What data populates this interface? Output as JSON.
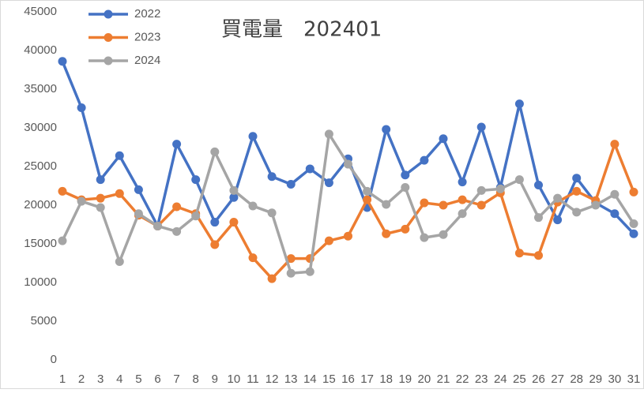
{
  "chart_data": {
    "type": "line",
    "title": "買電量　202401",
    "categories": [
      "1",
      "2",
      "3",
      "4",
      "5",
      "6",
      "7",
      "8",
      "9",
      "10",
      "11",
      "12",
      "13",
      "14",
      "15",
      "16",
      "17",
      "18",
      "19",
      "20",
      "21",
      "22",
      "23",
      "24",
      "25",
      "26",
      "27",
      "28",
      "29",
      "30",
      "31"
    ],
    "series": [
      {
        "name": "2022",
        "color": "#4472c4",
        "values": [
          38600,
          32600,
          23300,
          26400,
          22000,
          17300,
          27900,
          23300,
          17800,
          21000,
          28900,
          23700,
          22700,
          24700,
          22900,
          26000,
          19700,
          29800,
          23900,
          25800,
          28600,
          23000,
          30100,
          22300,
          33100,
          22600,
          18100,
          23500,
          20300,
          18900,
          16300
        ]
      },
      {
        "name": "2023",
        "color": "#ed7d31",
        "values": [
          21800,
          20700,
          20900,
          21500,
          18700,
          17300,
          19800,
          18900,
          14900,
          17800,
          13200,
          10500,
          13100,
          13100,
          15400,
          16000,
          20700,
          16300,
          16900,
          20300,
          20000,
          20700,
          20000,
          21600,
          13800,
          13500,
          20400,
          21800,
          20600,
          27900,
          21700
        ]
      },
      {
        "name": "2024",
        "color": "#a5a5a5",
        "values": [
          15400,
          20500,
          19700,
          12700,
          18900,
          17300,
          16600,
          18600,
          26900,
          21900,
          19900,
          19000,
          11200,
          11400,
          29200,
          25300,
          21800,
          20100,
          22300,
          15800,
          16200,
          18900,
          21900,
          22100,
          23300,
          18400,
          20900,
          19100,
          20000,
          21400,
          17600
        ]
      }
    ],
    "ylim": [
      0,
      45000
    ],
    "yticks": [
      0,
      5000,
      10000,
      15000,
      20000,
      25000,
      30000,
      35000,
      40000,
      45000
    ],
    "grid": false,
    "legend": "top-left"
  }
}
